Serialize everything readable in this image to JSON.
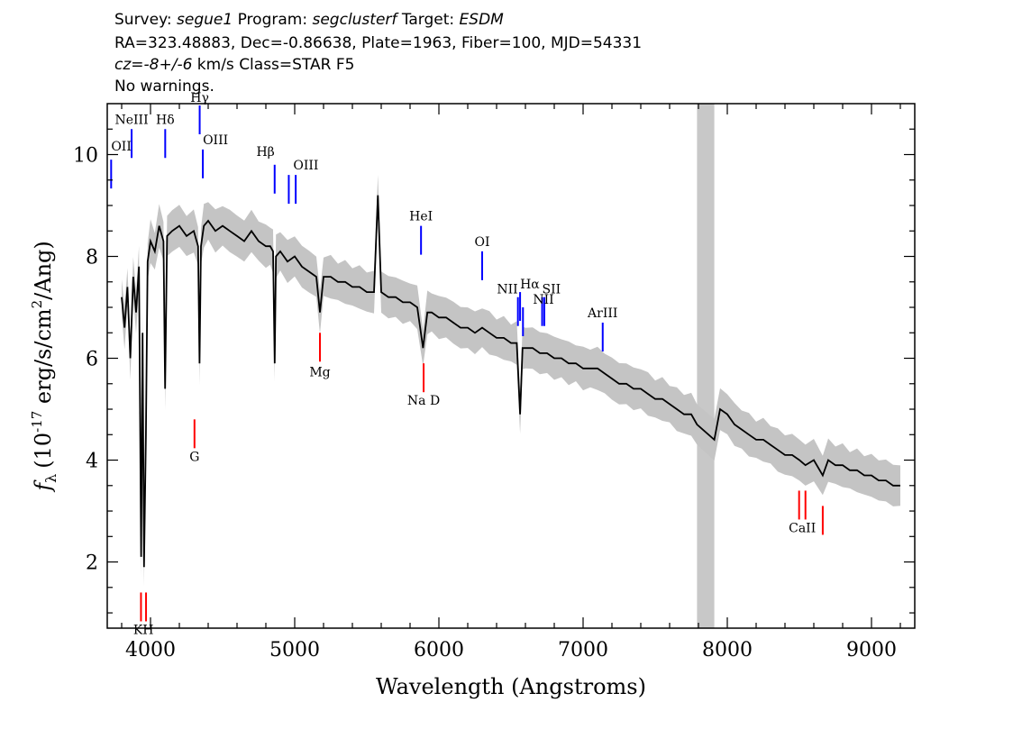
{
  "header": {
    "survey_label": "Survey:",
    "survey_value": "segue1",
    "program_label": "Program:",
    "program_value": "segclusterf",
    "target_label": "Target:",
    "target_value": "ESDM",
    "coords": "RA=323.48883, Dec=-0.86638, Plate=1963, Fiber=100, MJD=54331",
    "cz_label": "cz=",
    "cz_value": "-8+/-6",
    "cz_rest": " km/s Class=STAR F5",
    "warnings": "No warnings."
  },
  "colors": {
    "flux": "#000000",
    "error_band": "#c4c4c4",
    "emission_line": "#0000ff",
    "absorption_line": "#ff0000",
    "masked_region": "#c8c8c8"
  },
  "chart_data": {
    "type": "line",
    "xlabel": "Wavelength (Angstroms)",
    "ylabel_prefix": "f",
    "ylabel_sub": "λ",
    "ylabel_units": "(10",
    "ylabel_exp": "-17",
    "ylabel_tail": " erg/s/cm",
    "ylabel_exp2": "2",
    "ylabel_end": "/Ang)",
    "xlim": [
      3700,
      9300
    ],
    "ylim": [
      0.7,
      11.0
    ],
    "x_ticks": [
      4000,
      5000,
      6000,
      7000,
      8000,
      9000
    ],
    "y_ticks": [
      2,
      4,
      6,
      8,
      10
    ],
    "grid": false,
    "masked_band": [
      7790,
      7910
    ],
    "series": [
      {
        "x": [
          3800,
          3820,
          3840,
          3860,
          3880,
          3900,
          3920,
          3935,
          3945,
          3955,
          3968,
          3980,
          4000,
          4030,
          4060,
          4090,
          4101,
          4115,
          4150,
          4200,
          4250,
          4300,
          4330,
          4340,
          4350,
          4370,
          4400,
          4450,
          4500,
          4550,
          4600,
          4650,
          4700,
          4750,
          4800,
          4830,
          4850,
          4861,
          4870,
          4900,
          4950,
          5000,
          5050,
          5100,
          5150,
          5175,
          5200,
          5250,
          5300,
          5350,
          5400,
          5450,
          5500,
          5550,
          5577,
          5600,
          5650,
          5700,
          5750,
          5800,
          5850,
          5890,
          5920,
          5950,
          6000,
          6050,
          6100,
          6150,
          6200,
          6250,
          6300,
          6350,
          6400,
          6450,
          6500,
          6540,
          6563,
          6580,
          6600,
          6650,
          6700,
          6750,
          6800,
          6850,
          6900,
          6950,
          7000,
          7050,
          7100,
          7150,
          7200,
          7250,
          7300,
          7350,
          7400,
          7450,
          7500,
          7550,
          7600,
          7650,
          7700,
          7750,
          7790,
          7910,
          7950,
          8000,
          8050,
          8100,
          8150,
          8200,
          8250,
          8300,
          8350,
          8400,
          8450,
          8500,
          8542,
          8600,
          8662,
          8700,
          8750,
          8800,
          8850,
          8900,
          8950,
          9000,
          9050,
          9100,
          9150,
          9200
        ],
        "y": [
          7.2,
          6.6,
          7.4,
          6.0,
          7.6,
          6.9,
          7.8,
          2.1,
          6.5,
          1.9,
          4.5,
          7.9,
          8.3,
          8.1,
          8.6,
          8.3,
          5.4,
          8.4,
          8.5,
          8.6,
          8.4,
          8.5,
          8.2,
          5.9,
          8.2,
          8.6,
          8.7,
          8.5,
          8.6,
          8.5,
          8.4,
          8.3,
          8.5,
          8.3,
          8.2,
          8.2,
          8.1,
          5.9,
          8.0,
          8.1,
          7.9,
          8.0,
          7.8,
          7.7,
          7.6,
          6.9,
          7.6,
          7.6,
          7.5,
          7.5,
          7.4,
          7.4,
          7.3,
          7.3,
          9.2,
          7.3,
          7.2,
          7.2,
          7.1,
          7.1,
          7.0,
          6.2,
          6.9,
          6.9,
          6.8,
          6.8,
          6.7,
          6.6,
          6.6,
          6.5,
          6.6,
          6.5,
          6.4,
          6.4,
          6.3,
          6.3,
          4.9,
          6.2,
          6.2,
          6.2,
          6.1,
          6.1,
          6.0,
          6.0,
          5.9,
          5.9,
          5.8,
          5.8,
          5.8,
          5.7,
          5.6,
          5.5,
          5.5,
          5.4,
          5.4,
          5.3,
          5.2,
          5.2,
          5.1,
          5.0,
          4.9,
          4.9,
          4.7,
          4.4,
          5.0,
          4.9,
          4.7,
          4.6,
          4.5,
          4.4,
          4.4,
          4.3,
          4.2,
          4.1,
          4.1,
          4.0,
          3.9,
          4.0,
          3.7,
          4.0,
          3.9,
          3.9,
          3.8,
          3.8,
          3.7,
          3.7,
          3.6,
          3.6,
          3.5,
          3.5
        ]
      }
    ],
    "emission_lines": [
      {
        "label": "OII",
        "x": 3727,
        "y_top": 9.9
      },
      {
        "label": "NeIII",
        "x": 3869,
        "y_top": 10.5
      },
      {
        "label": "Hδ",
        "x": 4102,
        "y_top": 10.5
      },
      {
        "label": "Hγ",
        "x": 4341,
        "y_top": 11.0
      },
      {
        "label": "OIII",
        "x": 4363,
        "y_top": 10.1
      },
      {
        "label": "Hβ",
        "x": 4861,
        "y_top": 9.8
      },
      {
        "label": "OIII",
        "x": 4959,
        "y_top": 9.6
      },
      {
        "label": "OIII",
        "x": 5007,
        "y_top": 9.6
      },
      {
        "label": "HeI",
        "x": 5876,
        "y_top": 8.6
      },
      {
        "label": "OI",
        "x": 6300,
        "y_top": 8.1
      },
      {
        "label": "NII",
        "x": 6548,
        "y_top": 7.2
      },
      {
        "label": "Hα",
        "x": 6563,
        "y_top": 7.3
      },
      {
        "label": "NII",
        "x": 6583,
        "y_top": 7.0
      },
      {
        "label": "SII",
        "x": 6716,
        "y_top": 7.2
      },
      {
        "label": "SII",
        "x": 6731,
        "y_top": 7.2
      },
      {
        "label": "ArIII",
        "x": 7136,
        "y_top": 6.7
      }
    ],
    "absorption_lines": [
      {
        "label": "K",
        "x": 3934,
        "y_top": 1.4
      },
      {
        "label": "H",
        "x": 3969,
        "y_top": 1.4
      },
      {
        "label": "G",
        "x": 4305,
        "y_top": 4.8
      },
      {
        "label": "Mg",
        "x": 5175,
        "y_top": 6.5
      },
      {
        "label": "Na D",
        "x": 5894,
        "y_top": 5.9
      },
      {
        "label": "CaII",
        "x": 8498,
        "y_top": 3.4
      },
      {
        "label": "CaII",
        "x": 8542,
        "y_top": 3.4
      },
      {
        "label": "CaII",
        "x": 8662,
        "y_top": 3.1
      }
    ],
    "emission_label_text": {
      "OII": "OII",
      "NeIII": "NeIII",
      "Hd": "Hδ",
      "Hg": "Hγ",
      "OIII_a": "OIII",
      "Hb": "Hβ",
      "OIII_b": "OIII",
      "HeI": "HeI",
      "OI": "OI",
      "NII_a": "NII",
      "Ha": "Hα",
      "SII": "SII",
      "NII_b": "NII",
      "ArIII": "ArIII"
    },
    "absorption_label_text": {
      "KH": "KH",
      "G": "G",
      "Mg": "Mg",
      "NaD": "Na D",
      "CaII": "CaII"
    }
  }
}
